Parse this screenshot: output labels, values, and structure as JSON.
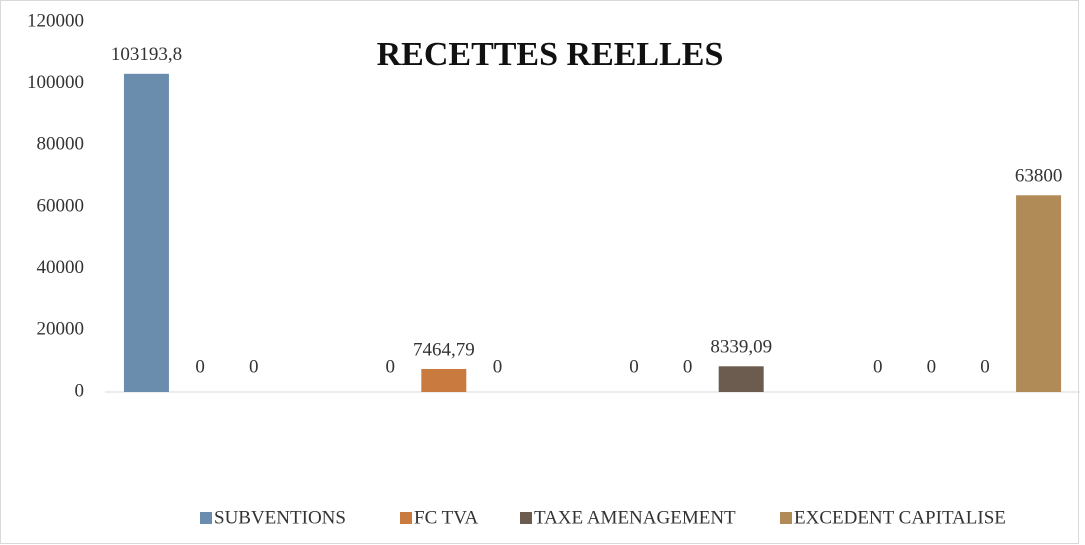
{
  "chart_data": {
    "type": "bar",
    "title": "RECETTES REELLES",
    "categories": [
      null,
      null,
      null,
      null
    ],
    "series": [
      {
        "name": "SUBVENTIONS",
        "color": "#6a8cad",
        "values": [
          103193.8,
          0,
          0,
          0
        ],
        "value_labels": [
          "103193,8",
          "0",
          "0",
          "0"
        ]
      },
      {
        "name": "FC TVA",
        "color": "#c97a3e",
        "values": [
          0,
          7464.79,
          0,
          0
        ],
        "value_labels": [
          "0",
          "7464,79",
          "0",
          "0"
        ]
      },
      {
        "name": "TAXE AMENAGEMENT",
        "color": "#6c5b4f",
        "values": [
          0,
          0,
          8339.09,
          0
        ],
        "value_labels": [
          "0",
          "0",
          "8339,09",
          "0"
        ]
      },
      {
        "name": "EXCEDENT  CAPITALISE",
        "color": "#b08a57",
        "values": [
          null,
          null,
          null,
          63800
        ],
        "value_labels": [
          null,
          null,
          null,
          "63800"
        ]
      }
    ],
    "ylim": [
      0,
      120000
    ],
    "yticks": [
      0,
      20000,
      40000,
      60000,
      80000,
      100000,
      120000
    ],
    "legend": "bottom"
  }
}
